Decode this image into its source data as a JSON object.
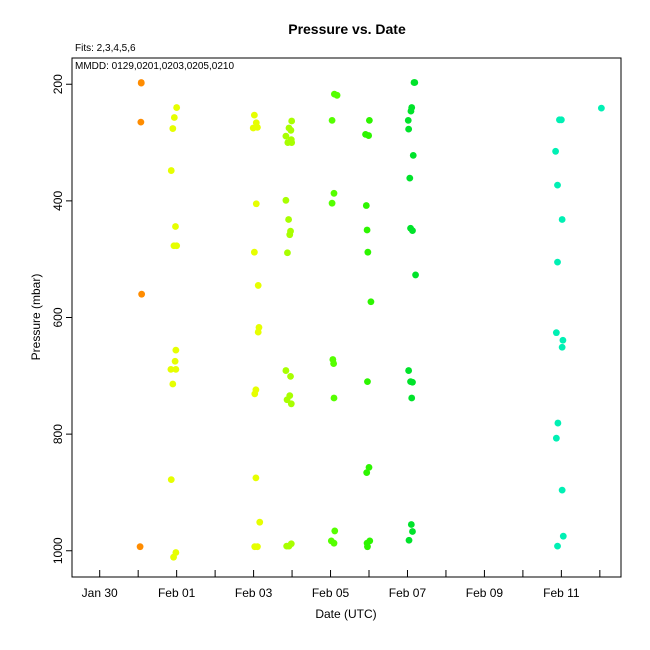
{
  "chart_data": {
    "type": "scatter",
    "title": "Pressure  vs. Date",
    "fits_note": "Fits: 2,3,4,5,6",
    "mmdd_note": "MMDD: 0129,0201,0203,0205,0210",
    "xlabel": "Date (UTC)",
    "ylabel": "Pressure (mbar)",
    "x_unit": "days (Jan 30 = 0)",
    "xlim": [
      -0.72,
      13.55
    ],
    "ylim": [
      1045,
      155
    ],
    "y_reversed": true,
    "grid": false,
    "x_ticks": [
      {
        "value": 0,
        "label": "Jan 30"
      },
      {
        "value": 1,
        "label": ""
      },
      {
        "value": 2,
        "label": "Feb 01"
      },
      {
        "value": 3,
        "label": ""
      },
      {
        "value": 4,
        "label": "Feb 03"
      },
      {
        "value": 5,
        "label": ""
      },
      {
        "value": 6,
        "label": "Feb 05"
      },
      {
        "value": 7,
        "label": ""
      },
      {
        "value": 8,
        "label": "Feb 07"
      },
      {
        "value": 9,
        "label": ""
      },
      {
        "value": 10,
        "label": "Feb 09"
      },
      {
        "value": 11,
        "label": ""
      },
      {
        "value": 12,
        "label": "Feb 11"
      },
      {
        "value": 13,
        "label": ""
      }
    ],
    "y_ticks": [
      {
        "value": 200,
        "label": "200"
      },
      {
        "value": 400,
        "label": "400"
      },
      {
        "value": 600,
        "label": "600"
      },
      {
        "value": 800,
        "label": "800"
      },
      {
        "value": 1000,
        "label": "1000"
      }
    ],
    "series": [
      {
        "color": "#ff8c00",
        "points": [
          {
            "x": 1.08,
            "y": 197
          },
          {
            "x": 1.08,
            "y": 198
          },
          {
            "x": 1.07,
            "y": 265
          },
          {
            "x": 1.09,
            "y": 560
          },
          {
            "x": 1.05,
            "y": 993
          }
        ]
      },
      {
        "color": "#e6ff00",
        "points": [
          {
            "x": 2.0,
            "y": 240
          },
          {
            "x": 1.94,
            "y": 257
          },
          {
            "x": 1.9,
            "y": 276
          },
          {
            "x": 1.86,
            "y": 348
          },
          {
            "x": 1.97,
            "y": 444
          },
          {
            "x": 1.93,
            "y": 477
          },
          {
            "x": 2.0,
            "y": 477
          },
          {
            "x": 1.98,
            "y": 656
          },
          {
            "x": 1.96,
            "y": 675
          },
          {
            "x": 1.85,
            "y": 689
          },
          {
            "x": 1.98,
            "y": 689
          },
          {
            "x": 1.9,
            "y": 714
          },
          {
            "x": 1.86,
            "y": 878
          },
          {
            "x": 1.98,
            "y": 1003
          },
          {
            "x": 1.92,
            "y": 1011
          },
          {
            "x": 4.02,
            "y": 253
          },
          {
            "x": 4.07,
            "y": 266
          },
          {
            "x": 3.99,
            "y": 275
          },
          {
            "x": 4.1,
            "y": 274
          },
          {
            "x": 4.07,
            "y": 405
          },
          {
            "x": 4.02,
            "y": 488
          },
          {
            "x": 4.12,
            "y": 545
          },
          {
            "x": 4.14,
            "y": 617
          },
          {
            "x": 4.12,
            "y": 625
          },
          {
            "x": 4.06,
            "y": 724
          },
          {
            "x": 4.03,
            "y": 731
          },
          {
            "x": 4.06,
            "y": 875
          },
          {
            "x": 4.16,
            "y": 951
          },
          {
            "x": 4.03,
            "y": 993
          },
          {
            "x": 4.1,
            "y": 993
          }
        ]
      },
      {
        "color": "#a8ff00",
        "points": [
          {
            "x": 4.99,
            "y": 263
          },
          {
            "x": 4.92,
            "y": 275
          },
          {
            "x": 4.97,
            "y": 279
          },
          {
            "x": 4.84,
            "y": 289
          },
          {
            "x": 4.98,
            "y": 295
          },
          {
            "x": 4.89,
            "y": 300
          },
          {
            "x": 4.99,
            "y": 300
          },
          {
            "x": 4.84,
            "y": 399
          },
          {
            "x": 4.91,
            "y": 432
          },
          {
            "x": 4.96,
            "y": 452
          },
          {
            "x": 4.94,
            "y": 458
          },
          {
            "x": 4.88,
            "y": 489
          },
          {
            "x": 4.84,
            "y": 691
          },
          {
            "x": 4.96,
            "y": 701
          },
          {
            "x": 4.94,
            "y": 734
          },
          {
            "x": 4.87,
            "y": 741
          },
          {
            "x": 4.98,
            "y": 748
          },
          {
            "x": 4.98,
            "y": 988
          },
          {
            "x": 4.86,
            "y": 992
          },
          {
            "x": 4.92,
            "y": 992
          }
        ]
      },
      {
        "color": "#55ff00",
        "points": [
          {
            "x": 6.1,
            "y": 217
          },
          {
            "x": 6.17,
            "y": 219
          },
          {
            "x": 6.04,
            "y": 262
          },
          {
            "x": 6.09,
            "y": 387
          },
          {
            "x": 6.04,
            "y": 404
          },
          {
            "x": 6.06,
            "y": 672
          },
          {
            "x": 6.08,
            "y": 679
          },
          {
            "x": 6.09,
            "y": 738
          },
          {
            "x": 6.11,
            "y": 966
          },
          {
            "x": 6.02,
            "y": 983
          },
          {
            "x": 6.09,
            "y": 987
          }
        ]
      },
      {
        "color": "#2df500",
        "points": [
          {
            "x": 7.01,
            "y": 262
          },
          {
            "x": 6.91,
            "y": 286
          },
          {
            "x": 6.99,
            "y": 288
          },
          {
            "x": 6.93,
            "y": 408
          },
          {
            "x": 6.95,
            "y": 450
          },
          {
            "x": 6.97,
            "y": 488
          },
          {
            "x": 7.05,
            "y": 573
          },
          {
            "x": 6.96,
            "y": 710
          },
          {
            "x": 6.94,
            "y": 866
          },
          {
            "x": 7.0,
            "y": 857
          },
          {
            "x": 7.02,
            "y": 983
          },
          {
            "x": 6.95,
            "y": 987
          },
          {
            "x": 6.96,
            "y": 993
          }
        ]
      },
      {
        "color": "#00e32a",
        "points": [
          {
            "x": 8.17,
            "y": 197
          },
          {
            "x": 8.19,
            "y": 197
          },
          {
            "x": 8.11,
            "y": 240
          },
          {
            "x": 8.09,
            "y": 246
          },
          {
            "x": 8.02,
            "y": 262
          },
          {
            "x": 8.03,
            "y": 277
          },
          {
            "x": 8.15,
            "y": 322
          },
          {
            "x": 8.06,
            "y": 361
          },
          {
            "x": 8.08,
            "y": 447
          },
          {
            "x": 8.13,
            "y": 451
          },
          {
            "x": 8.21,
            "y": 527
          },
          {
            "x": 8.03,
            "y": 691
          },
          {
            "x": 8.08,
            "y": 710
          },
          {
            "x": 8.13,
            "y": 711
          },
          {
            "x": 8.11,
            "y": 738
          },
          {
            "x": 8.1,
            "y": 955
          },
          {
            "x": 8.13,
            "y": 967
          },
          {
            "x": 8.04,
            "y": 982
          }
        ]
      },
      {
        "color": "#00f0b4",
        "points": [
          {
            "x": 13.04,
            "y": 241
          },
          {
            "x": 11.95,
            "y": 261
          },
          {
            "x": 12.0,
            "y": 261
          },
          {
            "x": 11.85,
            "y": 315
          },
          {
            "x": 11.9,
            "y": 373
          },
          {
            "x": 12.02,
            "y": 432
          },
          {
            "x": 11.9,
            "y": 505
          },
          {
            "x": 11.87,
            "y": 626
          },
          {
            "x": 12.04,
            "y": 639
          },
          {
            "x": 12.02,
            "y": 651
          },
          {
            "x": 11.91,
            "y": 781
          },
          {
            "x": 11.87,
            "y": 807
          },
          {
            "x": 12.02,
            "y": 896
          },
          {
            "x": 12.05,
            "y": 975
          },
          {
            "x": 11.9,
            "y": 992
          }
        ]
      }
    ]
  }
}
